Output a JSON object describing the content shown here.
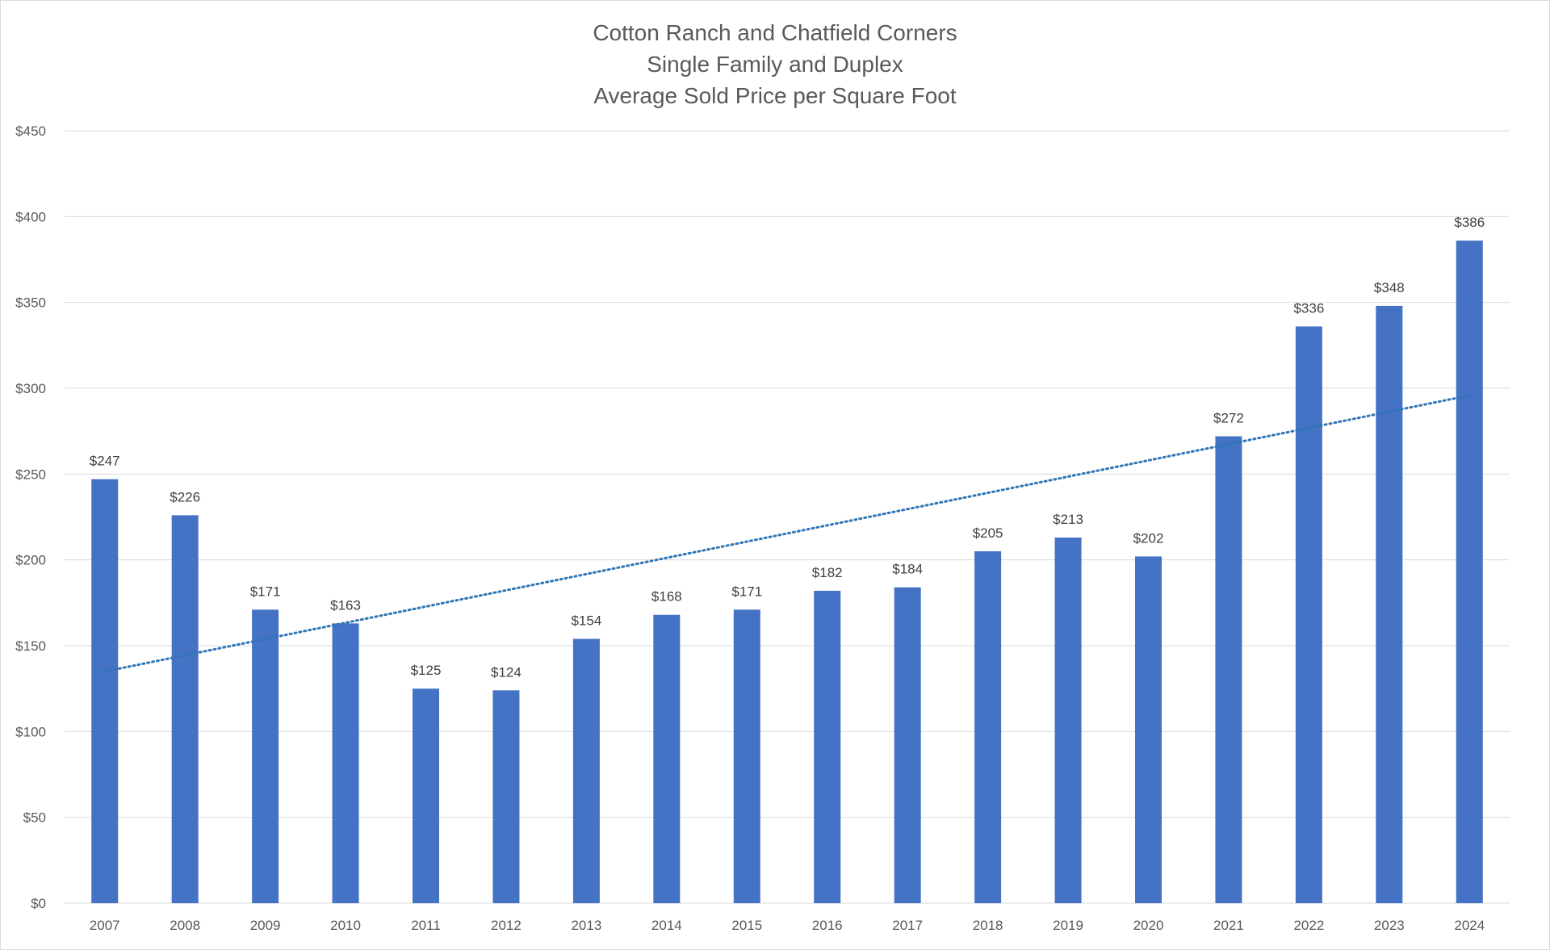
{
  "chart_data": {
    "type": "bar",
    "title_lines": [
      "Cotton Ranch and Chatfield Corners",
      "Single Family and Duplex",
      "Average Sold Price per Square Foot"
    ],
    "categories": [
      "2007",
      "2008",
      "2009",
      "2010",
      "2011",
      "2012",
      "2013",
      "2014",
      "2015",
      "2016",
      "2017",
      "2018",
      "2019",
      "2020",
      "2021",
      "2022",
      "2023",
      "2024"
    ],
    "values": [
      247,
      226,
      171,
      163,
      125,
      124,
      154,
      168,
      171,
      182,
      184,
      205,
      213,
      202,
      272,
      336,
      348,
      386
    ],
    "data_labels": [
      "$247",
      "$226",
      "$171",
      "$163",
      "$125",
      "$124",
      "$154",
      "$168",
      "$171",
      "$182",
      "$184",
      "$205",
      "$213",
      "$202",
      "$272",
      "$336",
      "$348",
      "$386"
    ],
    "y_ticks": [
      0,
      50,
      100,
      150,
      200,
      250,
      300,
      350,
      400,
      450
    ],
    "y_tick_labels": [
      "$0",
      "$50",
      "$100",
      "$150",
      "$200",
      "$250",
      "$300",
      "$350",
      "$400",
      "$450"
    ],
    "ylim": [
      0,
      450
    ],
    "xlabel": "",
    "ylabel": "",
    "grid": true,
    "trendline": {
      "type": "linear",
      "style": "dotted"
    },
    "colors": {
      "bar": "#4472c4",
      "trendline": "#2e75b6",
      "grid": "#d9d9d9"
    }
  }
}
